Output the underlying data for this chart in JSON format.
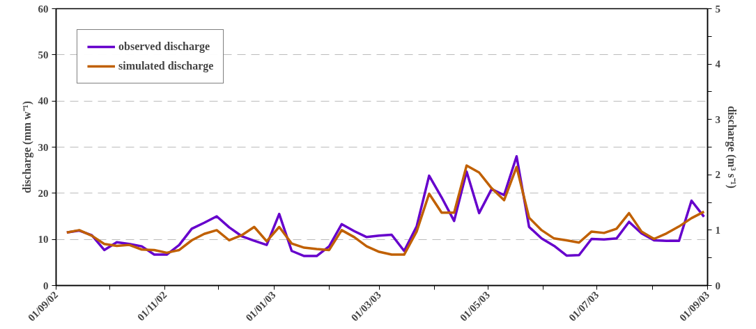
{
  "chart_data": {
    "type": "line",
    "ylabel": "discharge (mm w⁻¹)",
    "y2label": "discharge (m³ s⁻¹)",
    "x": [
      "2002-09-07",
      "2002-09-14",
      "2002-09-21",
      "2002-09-28",
      "2002-10-05",
      "2002-10-12",
      "2002-10-19",
      "2002-10-26",
      "2002-11-02",
      "2002-11-09",
      "2002-11-16",
      "2002-11-23",
      "2002-11-30",
      "2002-12-07",
      "2002-12-14",
      "2002-12-21",
      "2002-12-28",
      "2003-01-04",
      "2003-01-11",
      "2003-01-18",
      "2003-01-25",
      "2003-02-01",
      "2003-02-08",
      "2003-02-15",
      "2003-02-22",
      "2003-03-01",
      "2003-03-08",
      "2003-03-15",
      "2003-03-22",
      "2003-03-29",
      "2003-04-05",
      "2003-04-12",
      "2003-04-19",
      "2003-04-26",
      "2003-05-03",
      "2003-05-10",
      "2003-05-17",
      "2003-05-24",
      "2003-05-31",
      "2003-06-07",
      "2003-06-14",
      "2003-06-21",
      "2003-06-28",
      "2003-07-05",
      "2003-07-12",
      "2003-07-19",
      "2003-07-26",
      "2003-08-02",
      "2003-08-09",
      "2003-08-16",
      "2003-08-23",
      "2003-08-30"
    ],
    "series": [
      {
        "name": "observed discharge",
        "color": "#6600cc",
        "values": [
          11.5,
          11.9,
          10.9,
          7.7,
          9.4,
          9.0,
          8.5,
          6.7,
          6.7,
          8.8,
          12.3,
          13.6,
          15.0,
          12.6,
          10.7,
          9.7,
          8.8,
          15.5,
          7.5,
          6.4,
          6.4,
          8.5,
          13.3,
          11.8,
          10.5,
          10.8,
          11.0,
          7.5,
          12.8,
          23.8,
          19.1,
          14.0,
          24.7,
          15.7,
          20.9,
          19.6,
          28.0,
          12.7,
          10.2,
          8.6,
          6.5,
          6.6,
          10.1,
          10.0,
          10.2,
          13.8,
          11.3,
          9.8,
          9.7,
          9.7,
          18.4,
          14.9
        ]
      },
      {
        "name": "simulated discharge",
        "color": "#c06000",
        "values": [
          11.5,
          12.0,
          10.8,
          9.0,
          8.6,
          8.8,
          7.8,
          7.7,
          7.1,
          7.7,
          9.8,
          11.2,
          12.0,
          9.8,
          10.9,
          12.7,
          9.6,
          12.7,
          9.1,
          8.2,
          7.9,
          7.7,
          12.0,
          10.5,
          8.5,
          7.3,
          6.7,
          6.7,
          11.7,
          19.9,
          15.8,
          15.8,
          26.0,
          24.5,
          21.1,
          18.5,
          25.7,
          14.7,
          12.0,
          10.2,
          9.8,
          9.3,
          11.7,
          11.4,
          12.3,
          15.7,
          11.7,
          10.1,
          11.3,
          12.8,
          14.6,
          16.0
        ]
      }
    ],
    "xlim": [
      "2002-09-01",
      "2003-09-01"
    ],
    "xticks": [
      {
        "value": "2002-09-01",
        "label": "01/09/02"
      },
      {
        "value": "2002-10-01",
        "label": null
      },
      {
        "value": "2002-11-01",
        "label": "01/11/02"
      },
      {
        "value": "2002-12-01",
        "label": null
      },
      {
        "value": "2003-01-01",
        "label": "01/01/03"
      },
      {
        "value": "2003-02-01",
        "label": null
      },
      {
        "value": "2003-03-01",
        "label": "01/03/03"
      },
      {
        "value": "2003-04-01",
        "label": null
      },
      {
        "value": "2003-05-01",
        "label": "01/05/03"
      },
      {
        "value": "2003-06-01",
        "label": null
      },
      {
        "value": "2003-07-01",
        "label": "01/07/03"
      },
      {
        "value": "2003-08-01",
        "label": null
      },
      {
        "value": "2003-09-01",
        "label": "01/09/03"
      }
    ],
    "ylim": [
      0,
      60
    ],
    "yticks": [
      0,
      10,
      20,
      30,
      40,
      50,
      60
    ],
    "y2lim": [
      0,
      5
    ],
    "y2ticks": [
      0,
      {
        "value": 0.5,
        "label": null
      },
      1,
      {
        "value": 1.5,
        "label": null
      },
      2,
      {
        "value": 2.5,
        "label": null
      },
      3,
      {
        "value": 3.5,
        "label": null
      },
      4,
      {
        "value": 4.5,
        "label": null
      },
      5
    ],
    "grid": "y",
    "legend": "top left",
    "marker": "none",
    "line_style": "solid"
  }
}
